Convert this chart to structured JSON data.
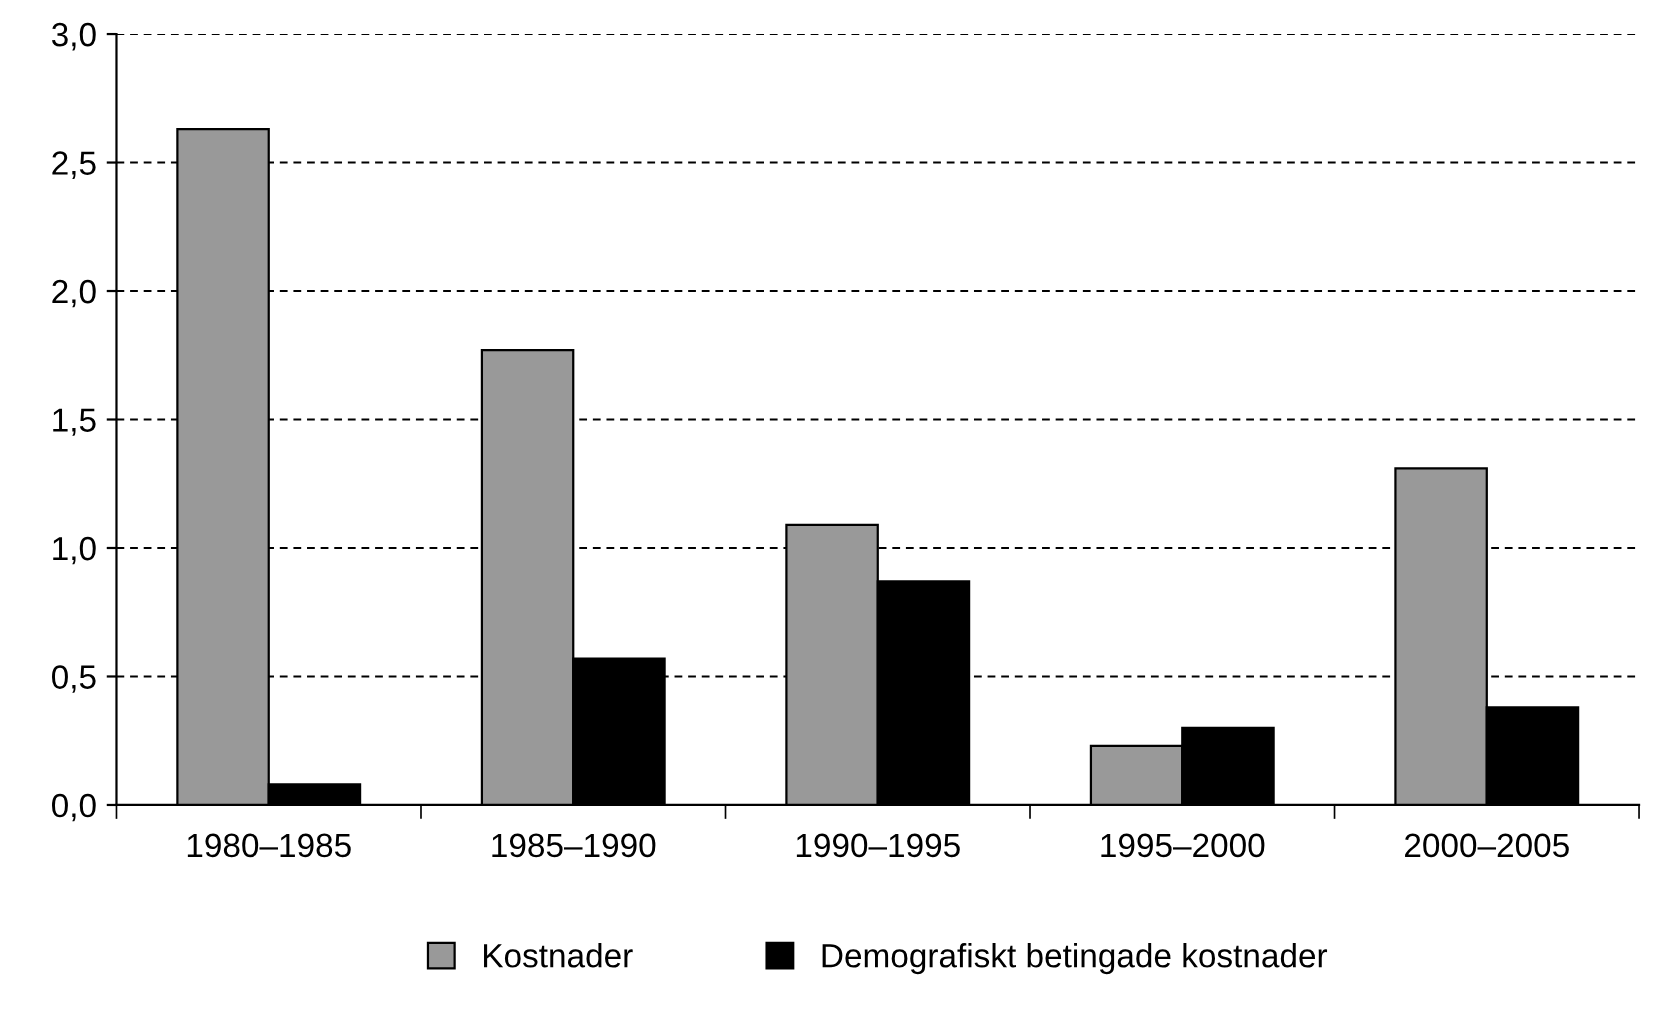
{
  "chart_data": {
    "type": "bar",
    "categories": [
      "1980–1985",
      "1985–1990",
      "1990–1995",
      "1995–2000",
      "2000–2005"
    ],
    "series": [
      {
        "name": "Kostnader",
        "color": "#999999",
        "values": [
          2.63,
          1.77,
          1.09,
          0.23,
          1.31
        ]
      },
      {
        "name": "Demografiskt betingade kostnader",
        "color": "#000000",
        "values": [
          0.08,
          0.57,
          0.87,
          0.3,
          0.38
        ]
      }
    ],
    "ylim": [
      0,
      3
    ],
    "yticks": [
      {
        "value": 0,
        "label": "0,0"
      },
      {
        "value": 0.5,
        "label": "0,5"
      },
      {
        "value": 1,
        "label": "1,0"
      },
      {
        "value": 1.5,
        "label": "1,5"
      },
      {
        "value": 2,
        "label": "2,0"
      },
      {
        "value": 2.5,
        "label": "2,5"
      },
      {
        "value": 3,
        "label": "3,0"
      }
    ],
    "grid": "y",
    "legend": "bottom"
  }
}
